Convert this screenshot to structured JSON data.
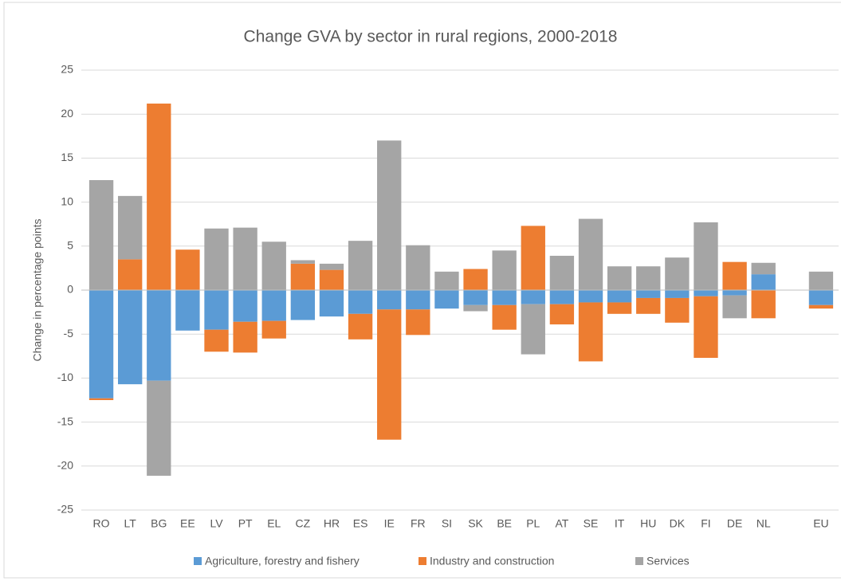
{
  "chart_data": {
    "type": "stacked-bar",
    "title": "Change GVA by sector in rural regions, 2000-2018",
    "y_label": "Change in percentage points",
    "categories": [
      "RO",
      "LT",
      "BG",
      "EE",
      "LV",
      "PT",
      "EL",
      "CZ",
      "HR",
      "ES",
      "IE",
      "FR",
      "SI",
      "SK",
      "BE",
      "PL",
      "AT",
      "SE",
      "IT",
      "HU",
      "DK",
      "FI",
      "DE",
      "NL",
      null,
      "EU"
    ],
    "series": [
      {
        "name": "Agriculture, forestry and fishery",
        "color": "#5b9bd5",
        "values": [
          -12.3,
          -10.7,
          -10.3,
          -4.6,
          -4.5,
          -3.6,
          -3.5,
          -3.4,
          -3.0,
          -2.7,
          -2.2,
          -2.2,
          -2.1,
          -1.7,
          -1.7,
          -1.6,
          -1.6,
          -1.4,
          -1.4,
          -0.9,
          -0.9,
          -0.7,
          -0.6,
          1.8,
          null,
          -1.7
        ]
      },
      {
        "name": "Industry and construction",
        "color": "#ed7d31",
        "values": [
          -0.2,
          3.5,
          21.2,
          4.6,
          -2.5,
          -3.5,
          -2.0,
          3.0,
          2.3,
          -2.9,
          -14.8,
          -2.9,
          0,
          2.4,
          -2.8,
          7.3,
          -2.3,
          -6.7,
          -1.3,
          -1.8,
          -2.8,
          -7.0,
          3.2,
          -3.2,
          null,
          -0.4
        ]
      },
      {
        "name": "Services",
        "color": "#a5a5a5",
        "values": [
          12.5,
          7.2,
          -10.8,
          0,
          7.0,
          7.1,
          5.5,
          0.4,
          0.7,
          5.6,
          17.0,
          5.1,
          2.1,
          -0.7,
          4.5,
          -5.7,
          3.9,
          8.1,
          2.7,
          2.7,
          3.7,
          7.7,
          -2.6,
          1.3,
          null,
          2.1
        ]
      }
    ],
    "ylim": [
      -25,
      25
    ],
    "yticks": [
      -25,
      -20,
      -15,
      -10,
      -5,
      0,
      5,
      10,
      15,
      20,
      25
    ],
    "grid": true,
    "legend": "bottom"
  }
}
